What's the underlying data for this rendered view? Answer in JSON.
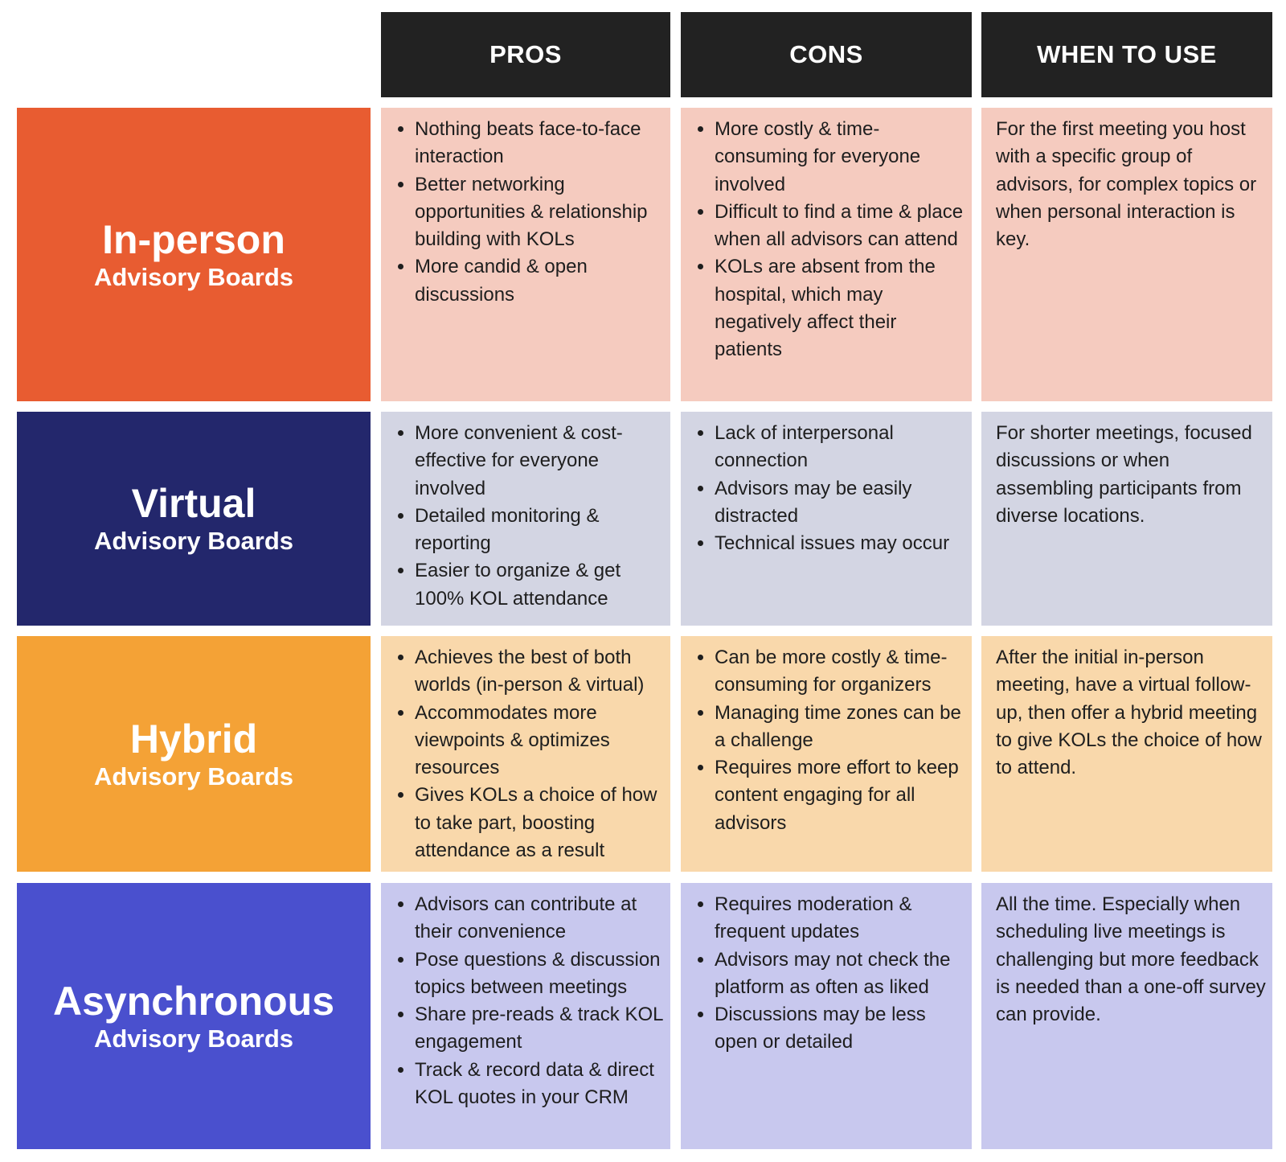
{
  "headers": [
    "PROS",
    "CONS",
    "WHEN TO USE"
  ],
  "colors": {
    "header": "#222222"
  },
  "rows": [
    {
      "title": "In-person",
      "subtitle": "Advisory Boards",
      "color": "#E85C31",
      "light": "#F5CBBF",
      "pros": [
        "Nothing beats face-to-face interaction",
        "Better networking opportunities & relationship building with KOLs",
        "More candid & open discussions"
      ],
      "cons": [
        "More costly & time-consuming for everyone involved",
        "Difficult to find a time & place when all advisors can attend",
        "KOLs are absent from the hospital, which may negatively affect their patients"
      ],
      "when": "For the first meeting you host with a specific group of advisors, for complex topics or when personal interaction is key."
    },
    {
      "title": "Virtual",
      "subtitle": "Advisory Boards",
      "color": "#23276C",
      "light": "#D3D5E3",
      "pros": [
        "More convenient & cost-effective for everyone involved",
        "Detailed monitoring & reporting",
        "Easier to organize & get 100% KOL attendance"
      ],
      "cons": [
        "Lack of interpersonal connection",
        "Advisors may be easily distracted",
        "Technical issues may occur"
      ],
      "when": "For shorter meetings, focused discussions or when assembling participants from diverse locations."
    },
    {
      "title": "Hybrid",
      "subtitle": "Advisory Boards",
      "color": "#F4A236",
      "light": "#F9D8AB",
      "pros": [
        "Achieves the best of both worlds (in-person & virtual)",
        "Accommodates more viewpoints & optimizes resources",
        "Gives KOLs a choice of how to take part, boosting attendance as a result"
      ],
      "cons": [
        "Can be more costly & time-consuming for organizers",
        "Managing time zones can be a challenge",
        "Requires more effort to keep content engaging for all advisors"
      ],
      "when": "After the initial in-person meeting, have a virtual follow-up, then offer a hybrid meeting to give KOLs the choice of how to attend."
    },
    {
      "title": "Asynchronous",
      "subtitle": "Advisory Boards",
      "color": "#4A50CE",
      "light": "#C8C8EE",
      "pros": [
        "Advisors can contribute at their convenience",
        "Pose questions & discussion topics between meetings",
        "Share pre-reads & track KOL engagement",
        "Track & record data & direct KOL quotes in your CRM"
      ],
      "cons": [
        "Requires moderation & frequent updates",
        "Advisors may not check the platform as often as liked",
        "Discussions may be less open or detailed"
      ],
      "when": "All the time. Especially when scheduling live meetings is challenging but more feedback is needed than a one-off survey can provide."
    }
  ]
}
